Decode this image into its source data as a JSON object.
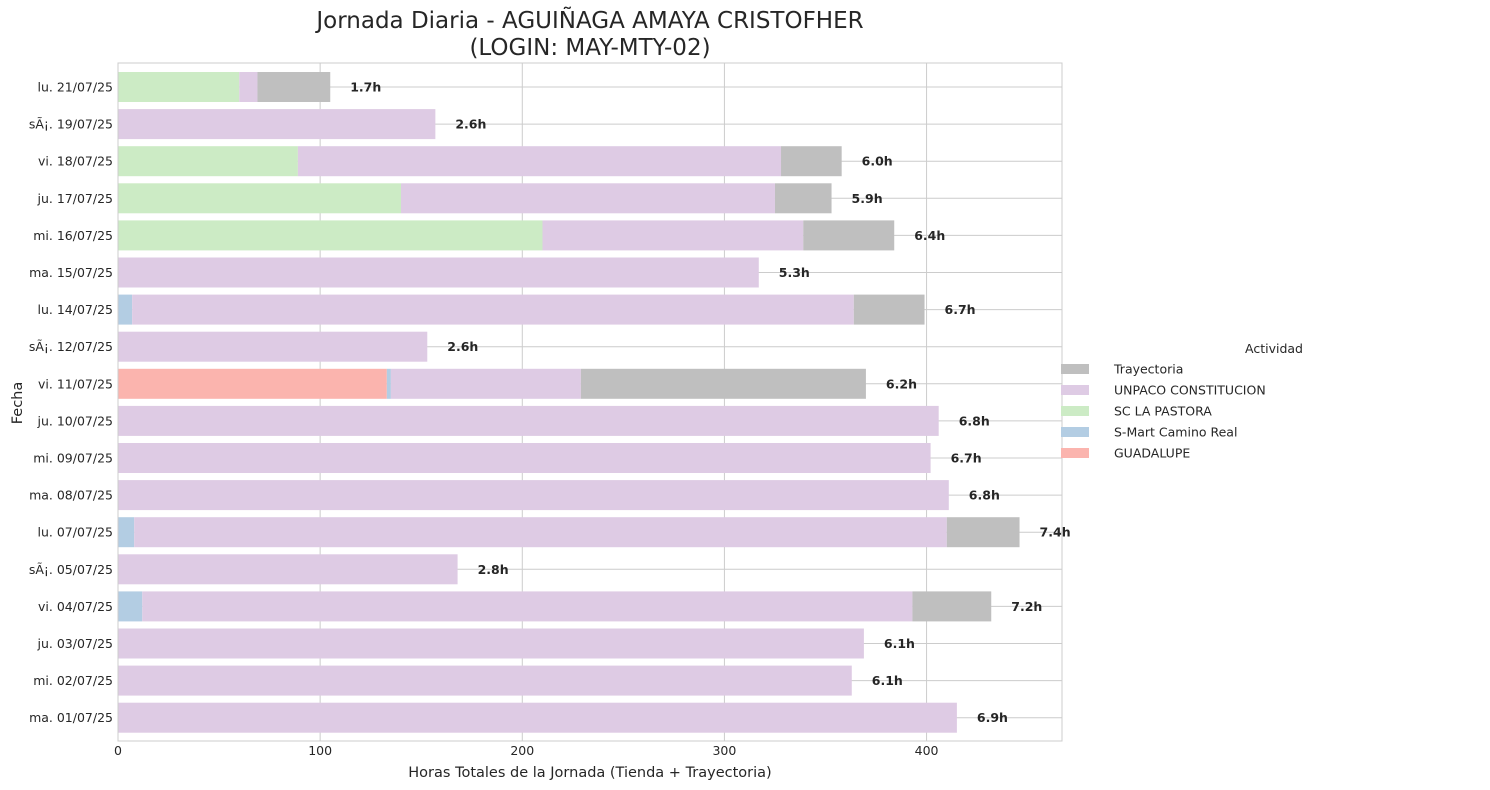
{
  "chart_data": {
    "type": "bar",
    "orientation": "horizontal",
    "stacked": true,
    "title_lines": [
      "Jornada Diaria - AGUIÑAGA AMAYA CRISTOFHER",
      "(LOGIN: MAY-MTY-02)"
    ],
    "xlabel": "Horas Totales de la Jornada (Tienda + Trayectoria)",
    "ylabel": "Fecha",
    "xlim": [
      0,
      467
    ],
    "xticks": [
      0,
      100,
      200,
      300,
      400
    ],
    "grid": true,
    "legend": {
      "title": "Actividad",
      "placement": "center-right outside",
      "entries": [
        {
          "name": "Trayectoria",
          "color": "#bfbfbf"
        },
        {
          "name": "UNPACO CONSTITUCION",
          "color": "#decbe4"
        },
        {
          "name": "SC LA PASTORA",
          "color": "#ccebc5"
        },
        {
          "name": "S-Mart Camino Real",
          "color": "#b3cde3"
        },
        {
          "name": "GUADALUPE",
          "color": "#fbb4ae"
        }
      ]
    },
    "categories": [
      "lu. 21/07/25",
      "sÃ¡. 19/07/25",
      "vi. 18/07/25",
      "ju. 17/07/25",
      "mi. 16/07/25",
      "ma. 15/07/25",
      "lu. 14/07/25",
      "sÃ¡. 12/07/25",
      "vi. 11/07/25",
      "ju. 10/07/25",
      "mi. 09/07/25",
      "ma. 08/07/25",
      "lu. 07/07/25",
      "sÃ¡. 05/07/25",
      "vi. 04/07/25",
      "ju. 03/07/25",
      "mi. 02/07/25",
      "ma. 01/07/25"
    ],
    "series": [
      {
        "name": "GUADALUPE",
        "color": "#fbb4ae",
        "values": [
          0,
          0,
          0,
          0,
          0,
          0,
          0,
          0,
          133,
          0,
          0,
          0,
          0,
          0,
          0,
          0,
          0,
          0
        ]
      },
      {
        "name": "S-Mart Camino Real",
        "color": "#b3cde3",
        "values": [
          0,
          0,
          0,
          0,
          0,
          0,
          7,
          0,
          2,
          0,
          0,
          0,
          8,
          0,
          12,
          0,
          0,
          0
        ]
      },
      {
        "name": "SC LA PASTORA",
        "color": "#ccebc5",
        "values": [
          60,
          0,
          89,
          140,
          210,
          0,
          0,
          0,
          0,
          0,
          0,
          0,
          0,
          0,
          0,
          0,
          0,
          0
        ]
      },
      {
        "name": "UNPACO CONSTITUCION",
        "color": "#decbe4",
        "values": [
          9,
          157,
          239,
          185,
          129,
          317,
          357,
          153,
          94,
          406,
          402,
          411,
          402,
          168,
          381,
          369,
          363,
          415
        ]
      },
      {
        "name": "Trayectoria",
        "color": "#bfbfbf",
        "values": [
          36,
          0,
          30,
          28,
          45,
          0,
          35,
          0,
          141,
          0,
          0,
          0,
          36,
          0,
          39,
          0,
          0,
          0
        ]
      }
    ],
    "data_labels": [
      "1.7h",
      "2.6h",
      "6.0h",
      "5.9h",
      "6.4h",
      "5.3h",
      "6.7h",
      "2.6h",
      "6.2h",
      "6.8h",
      "6.7h",
      "6.8h",
      "7.4h",
      "2.8h",
      "7.2h",
      "6.1h",
      "6.1h",
      "6.9h"
    ]
  }
}
